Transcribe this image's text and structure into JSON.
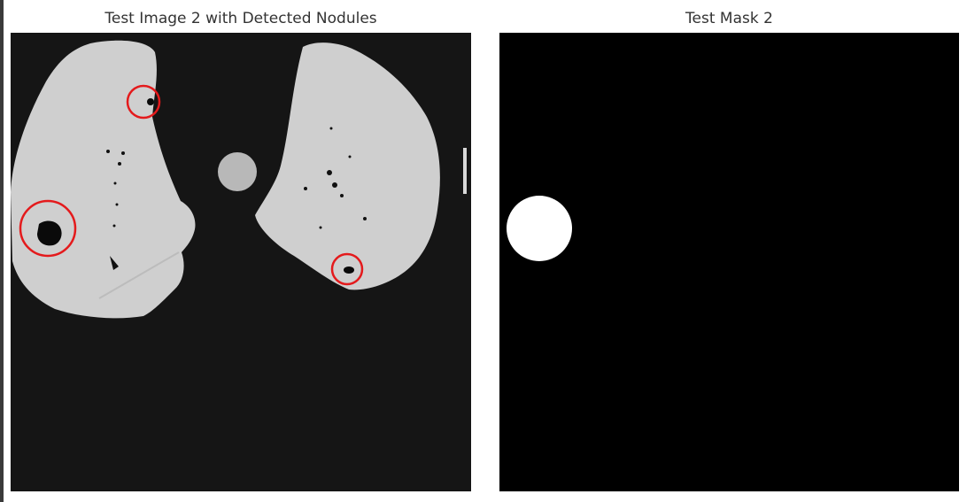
{
  "figure": {
    "left_panel": {
      "title": "Test Image 2 with Detected Nodules",
      "image": "ct-lung-slice",
      "detections": {
        "count": 3,
        "marker_color": "#e41a1c"
      },
      "background_color": "#151515"
    },
    "right_panel": {
      "title": "Test Mask 2",
      "image": "binary-nodule-mask",
      "mask_color": "#ffffff",
      "background_color": "#000000"
    }
  }
}
